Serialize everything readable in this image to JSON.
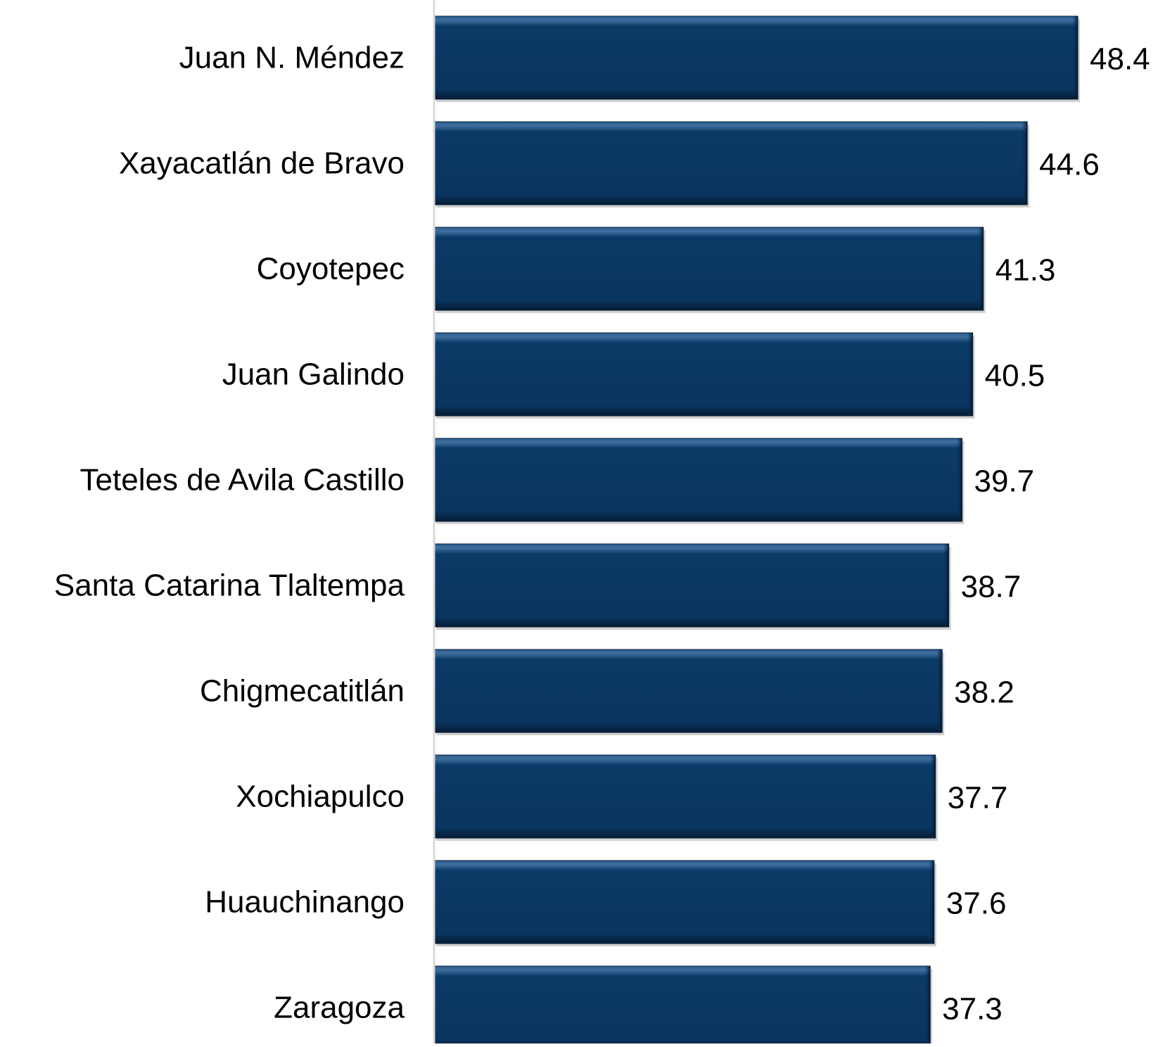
{
  "chart_data": {
    "type": "bar",
    "orientation": "horizontal",
    "categories": [
      "Juan N. Méndez",
      "Xayacatlán de Bravo",
      "Coyotepec",
      "Juan Galindo",
      "Teteles de Avila Castillo",
      "Santa Catarina Tlaltempa",
      "Chigmecatitlán",
      "Xochiapulco",
      "Huauchinango",
      "Zaragoza"
    ],
    "values": [
      48.4,
      44.6,
      41.3,
      40.5,
      39.7,
      38.7,
      38.2,
      37.7,
      37.6,
      37.3
    ],
    "data_labels": [
      "48.4",
      "44.6",
      "41.3",
      "40.5",
      "39.7",
      "38.7",
      "38.2",
      "37.7",
      "37.6",
      "37.3"
    ],
    "title": "",
    "xlabel": "",
    "ylabel": "",
    "xlim": [
      0,
      48.4
    ],
    "grid": false,
    "legend": "none",
    "colors": {
      "bar": "#0a3560",
      "bar_highlight": "#3f6f9f",
      "bar_shadow": "#061f3c",
      "axis": "#d9d9d9",
      "text": "#000000"
    }
  }
}
